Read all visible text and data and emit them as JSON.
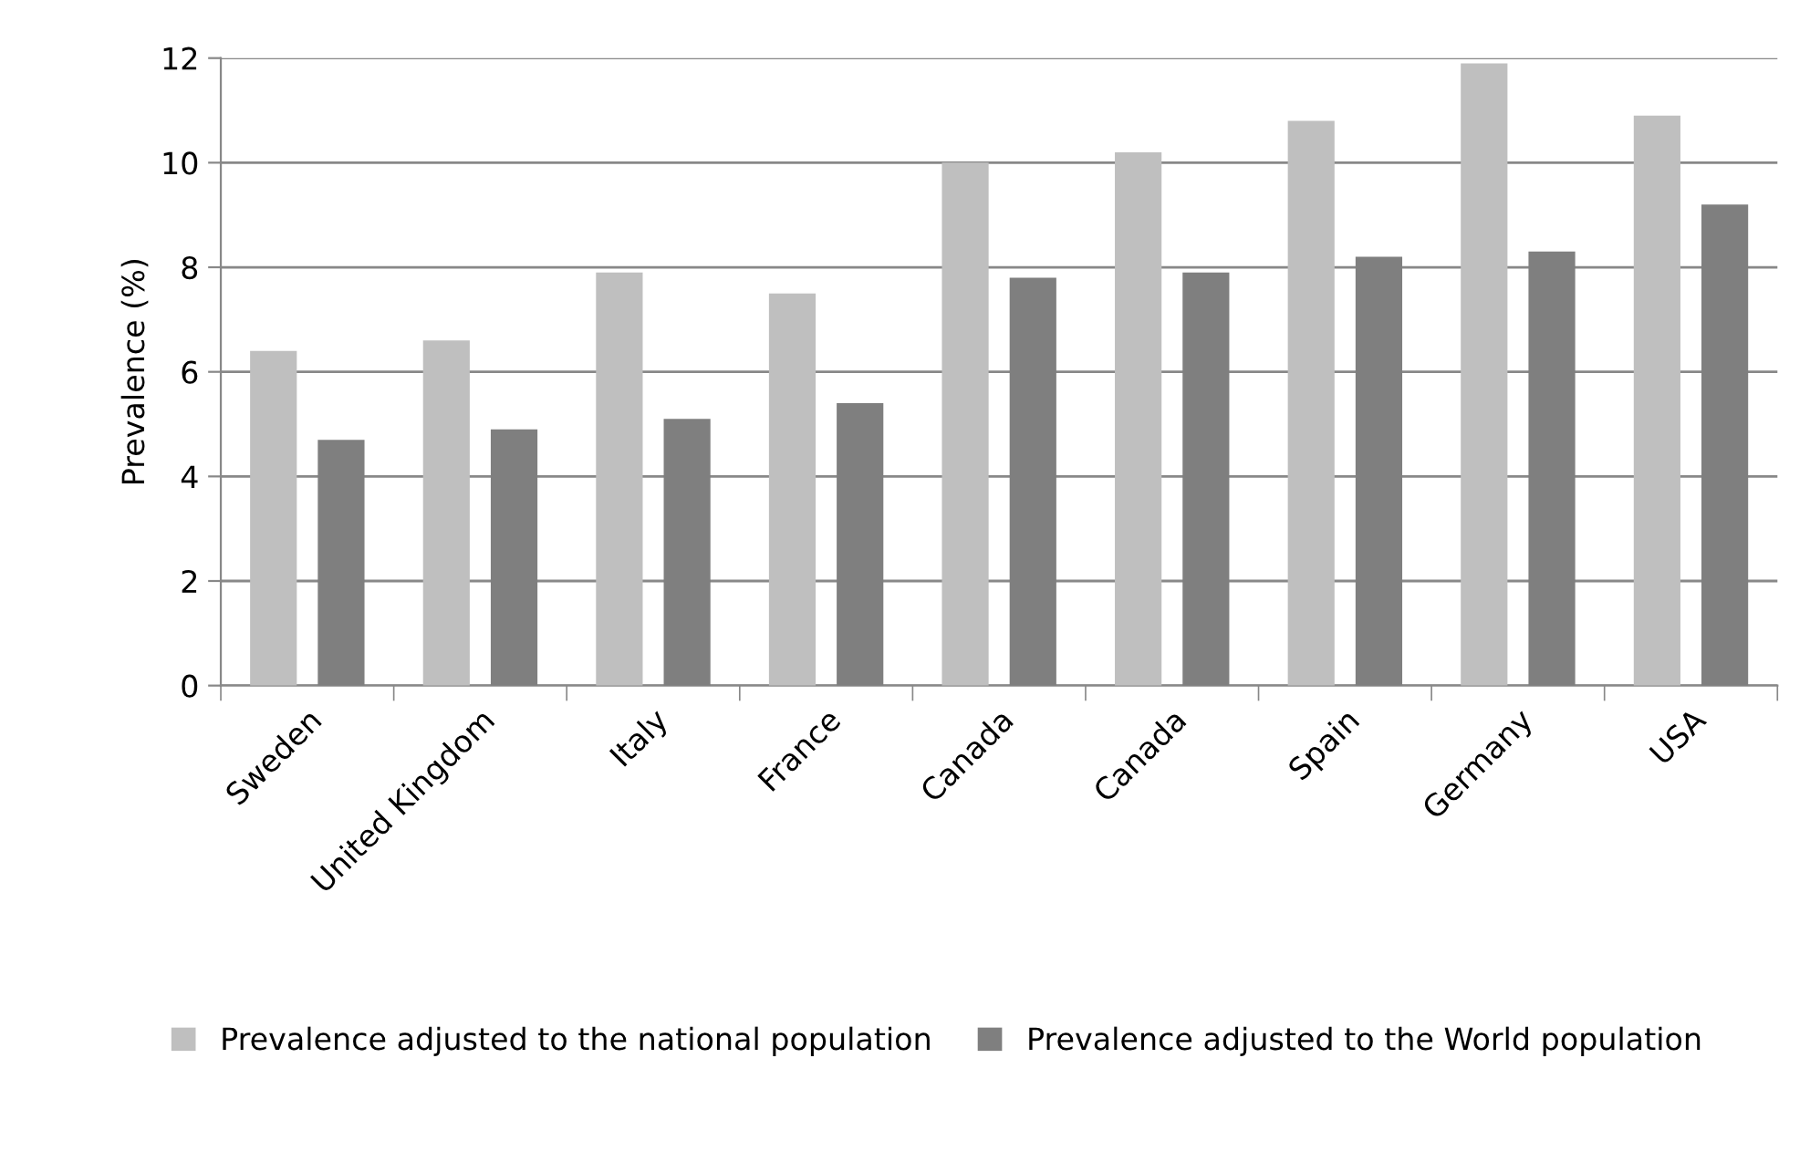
{
  "chart_data": {
    "type": "bar",
    "ylabel": "Prevalence (%)",
    "categories": [
      "Sweden",
      "United Kingdom",
      "Italy",
      "France",
      "Canada",
      "Canada",
      "Spain",
      "Germany",
      "USA"
    ],
    "series": [
      {
        "name": "Prevalence adjusted to the national population",
        "color": "#bfbfbf",
        "values": [
          6.4,
          6.6,
          7.9,
          7.5,
          10.0,
          10.2,
          10.8,
          11.9,
          10.9
        ]
      },
      {
        "name": "Prevalence adjusted to the World population",
        "color": "#7f7f7f",
        "values": [
          4.7,
          4.9,
          5.1,
          5.4,
          7.8,
          7.9,
          8.2,
          8.3,
          9.2
        ]
      }
    ],
    "ylim": [
      0,
      12
    ],
    "yticks": [
      0,
      2,
      4,
      6,
      8,
      10,
      12
    ],
    "grid": "y",
    "legend": "bottom"
  }
}
